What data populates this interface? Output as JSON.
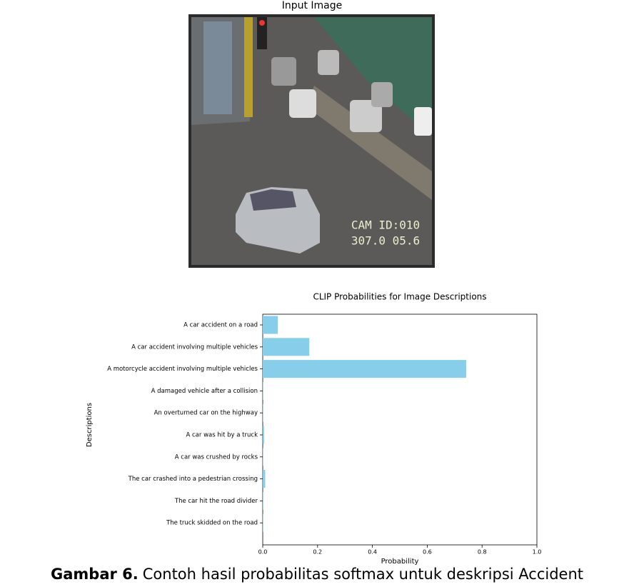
{
  "figure": {
    "image": {
      "title": "Input Image",
      "overlay": [
        "CAM ID:010",
        "307.0 05.6"
      ]
    },
    "caption": {
      "label": "Gambar 6.",
      "text": "Contoh hasil probabilitas softmax untuk deskripsi Accident"
    }
  },
  "chart_data": {
    "type": "barh",
    "title": "CLIP Probabilities for Image Descriptions",
    "x_label": "Probability",
    "y_label": "Descriptions",
    "categories": [
      "A car accident on a road",
      "A car accident involving multiple vehicles",
      "A motorcycle accident involving multiple vehicles",
      "A damaged vehicle after a collision",
      "An overturned car on the highway",
      "A car was hit by a truck",
      "A car was crushed by rocks",
      "The car crashed into a pedestrian crossing",
      "The car hit the road divider",
      "The truck skidded on the road"
    ],
    "values": [
      0.055,
      0.17,
      0.742,
      0.001,
      0.001,
      0.005,
      0.001,
      0.009,
      0.002,
      0.001
    ],
    "color": "#87ceeb",
    "xlim": [
      0,
      1
    ],
    "xticks": [
      {
        "value": 0,
        "label": "0.0"
      },
      {
        "value": 0.2,
        "label": "0.2"
      },
      {
        "value": 0.4,
        "label": "0.4"
      },
      {
        "value": 0.6,
        "label": "0.6"
      },
      {
        "value": 0.8,
        "label": "0.8"
      },
      {
        "value": 1,
        "label": "1.0"
      }
    ],
    "grid": false
  }
}
